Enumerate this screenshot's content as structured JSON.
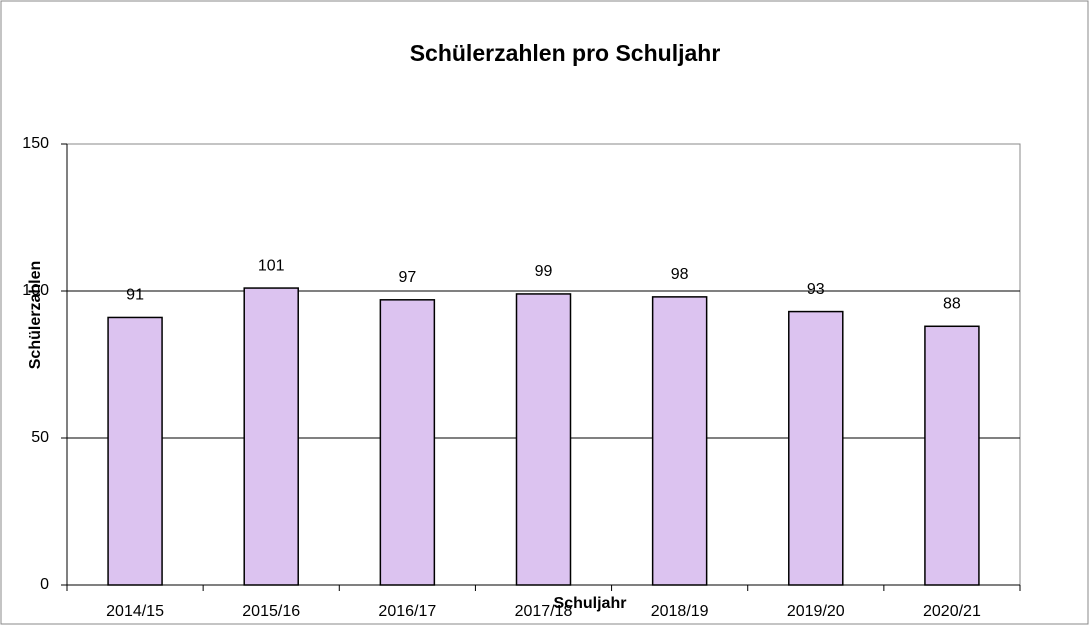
{
  "chart_data": {
    "type": "bar",
    "title": "Schülerzahlen pro Schuljahr",
    "x_label": "Schuljahr",
    "y_label": "Schülerzahlen",
    "categories": [
      "2014/15",
      "2015/16",
      "2016/17",
      "2017/18",
      "2018/19",
      "2019/20",
      "2020/21"
    ],
    "values": [
      91,
      101,
      97,
      99,
      98,
      93,
      88
    ],
    "color": "#dcc3f0",
    "ylim": [
      0,
      150
    ],
    "yticks": [
      0,
      50,
      100,
      150
    ],
    "grid": true
  }
}
